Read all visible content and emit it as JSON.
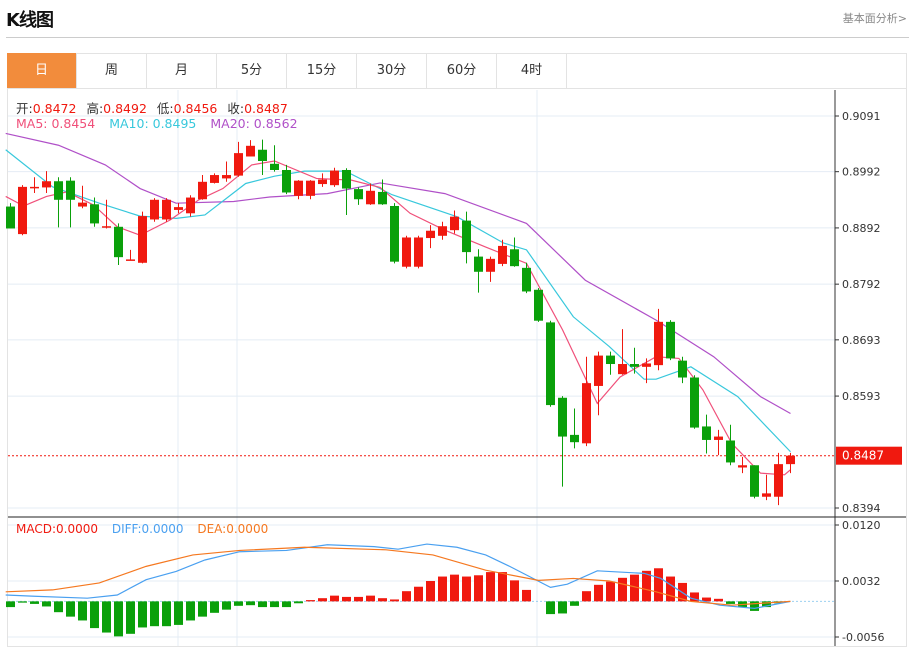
{
  "header": {
    "title": "K线图",
    "link": "基本面分析>"
  },
  "tabs": [
    {
      "label": "日",
      "active": true
    },
    {
      "label": "周"
    },
    {
      "label": "月"
    },
    {
      "label": "5分"
    },
    {
      "label": "15分"
    },
    {
      "label": "30分"
    },
    {
      "label": "60分"
    },
    {
      "label": "4时"
    }
  ],
  "ohlc_legend": {
    "open_label": "开:",
    "open": "0.8472",
    "high_label": "高:",
    "high": "0.8492",
    "low_label": "低:",
    "low": "0.8456",
    "close_label": "收:",
    "close": "0.8487"
  },
  "ma_legend": {
    "ma5": "MA5: 0.8454",
    "ma10": "MA10: 0.8495",
    "ma20": "MA20: 0.8562"
  },
  "macd_legend": {
    "macd": "MACD:0.0000",
    "diff": "DIFF:0.0000",
    "dea": "DEA:0.0000"
  },
  "colors": {
    "up": "#f0190f",
    "down": "#0aa00a",
    "ma5": "#f0507a",
    "ma10": "#38c8dc",
    "ma20": "#b050c8",
    "diff": "#4aa0f0",
    "dea": "#f57820",
    "accent": "#f28c3c"
  },
  "chart_data": {
    "type": "candlestick",
    "price_ticks": [
      "0.9091",
      "0.8992",
      "0.8892",
      "0.8792",
      "0.8693",
      "0.8593",
      "0.8394"
    ],
    "current_price": "0.8487",
    "macd_ticks": [
      "0.0120",
      "0.0032",
      "-0.0056"
    ],
    "candles": [
      [
        0.893,
        0.8936,
        0.8891,
        0.8891
      ],
      [
        0.8881,
        0.8968,
        0.8879,
        0.8965
      ],
      [
        0.8963,
        0.8982,
        0.8954,
        0.8965
      ],
      [
        0.8964,
        0.8993,
        0.8954,
        0.8975
      ],
      [
        0.8975,
        0.8982,
        0.8893,
        0.8942
      ],
      [
        0.8976,
        0.8982,
        0.8893,
        0.8942
      ],
      [
        0.893,
        0.8967,
        0.8927,
        0.8937
      ],
      [
        0.8934,
        0.8946,
        0.8894,
        0.89
      ],
      [
        0.8894,
        0.8942,
        0.8891,
        0.8895
      ],
      [
        0.8894,
        0.89,
        0.8826,
        0.884
      ],
      [
        0.8835,
        0.8853,
        0.8834,
        0.8836
      ],
      [
        0.883,
        0.8921,
        0.8829,
        0.8913
      ],
      [
        0.8907,
        0.8945,
        0.8903,
        0.8942
      ],
      [
        0.8907,
        0.8945,
        0.8903,
        0.8942
      ],
      [
        0.8924,
        0.8936,
        0.8918,
        0.8929
      ],
      [
        0.8918,
        0.895,
        0.8912,
        0.8946
      ],
      [
        0.8943,
        0.8986,
        0.8942,
        0.8974
      ],
      [
        0.8972,
        0.8989,
        0.8971,
        0.8986
      ],
      [
        0.898,
        0.901,
        0.8974,
        0.8986
      ],
      [
        0.8985,
        0.9045,
        0.8983,
        0.9025
      ],
      [
        0.9019,
        0.9048,
        0.9019,
        0.9038
      ],
      [
        0.9031,
        0.9049,
        0.8986,
        0.9011
      ],
      [
        0.9006,
        0.9039,
        0.8992,
        0.8995
      ],
      [
        0.8995,
        0.9004,
        0.8952,
        0.8955
      ],
      [
        0.8949,
        0.8977,
        0.8943,
        0.8976
      ],
      [
        0.8949,
        0.8977,
        0.8943,
        0.8976
      ],
      [
        0.897,
        0.8989,
        0.8965,
        0.8978
      ],
      [
        0.8968,
        0.8999,
        0.8965,
        0.8994
      ],
      [
        0.8995,
        0.8998,
        0.8915,
        0.8962
      ],
      [
        0.8961,
        0.8964,
        0.8933,
        0.8943
      ],
      [
        0.8934,
        0.8971,
        0.8933,
        0.8958
      ],
      [
        0.8956,
        0.8978,
        0.8933,
        0.8934
      ],
      [
        0.8931,
        0.8936,
        0.8829,
        0.8832
      ],
      [
        0.8823,
        0.8878,
        0.882,
        0.8875
      ],
      [
        0.8823,
        0.8878,
        0.882,
        0.8875
      ],
      [
        0.8874,
        0.8897,
        0.8856,
        0.8887
      ],
      [
        0.8878,
        0.8903,
        0.8871,
        0.8895
      ],
      [
        0.8888,
        0.8923,
        0.8882,
        0.8912
      ],
      [
        0.8905,
        0.8921,
        0.8829,
        0.8849
      ],
      [
        0.8841,
        0.8854,
        0.8777,
        0.8814
      ],
      [
        0.8814,
        0.8841,
        0.8796,
        0.8837
      ],
      [
        0.8828,
        0.8871,
        0.8824,
        0.886
      ],
      [
        0.8854,
        0.8875,
        0.8823,
        0.8824
      ],
      [
        0.8821,
        0.883,
        0.8776,
        0.8779
      ],
      [
        0.8782,
        0.8785,
        0.8725,
        0.8727
      ],
      [
        0.8724,
        0.8727,
        0.8574,
        0.8577
      ],
      [
        0.859,
        0.8593,
        0.8432,
        0.8521
      ],
      [
        0.8524,
        0.8571,
        0.85,
        0.8511
      ],
      [
        0.8509,
        0.8663,
        0.8504,
        0.8616
      ],
      [
        0.8611,
        0.8672,
        0.8559,
        0.8665
      ],
      [
        0.8665,
        0.8672,
        0.8631,
        0.865
      ],
      [
        0.8632,
        0.8712,
        0.8631,
        0.865
      ],
      [
        0.865,
        0.8679,
        0.8633,
        0.8645
      ],
      [
        0.8645,
        0.866,
        0.8616,
        0.8651
      ],
      [
        0.8648,
        0.8748,
        0.8639,
        0.8725
      ],
      [
        0.8725,
        0.8728,
        0.8657,
        0.866
      ],
      [
        0.8656,
        0.8663,
        0.8616,
        0.8626
      ],
      [
        0.8626,
        0.863,
        0.8535,
        0.8537
      ],
      [
        0.8539,
        0.856,
        0.8491,
        0.8515
      ],
      [
        0.8515,
        0.8533,
        0.8488,
        0.8521
      ],
      [
        0.8514,
        0.8542,
        0.847,
        0.8475
      ],
      [
        0.8466,
        0.8485,
        0.8456,
        0.847
      ],
      [
        0.847,
        0.847,
        0.8411,
        0.8414
      ],
      [
        0.8414,
        0.8453,
        0.8408,
        0.842
      ],
      [
        0.8414,
        0.8492,
        0.8399,
        0.8472
      ],
      [
        0.8472,
        0.8492,
        0.8456,
        0.8487
      ]
    ],
    "ma5": [
      [
        -0.4,
        0.8948
      ],
      [
        1.1,
        0.8931
      ],
      [
        3.0,
        0.8948
      ],
      [
        4.7,
        0.8956
      ],
      [
        6.9,
        0.8933
      ],
      [
        8.9,
        0.8894
      ],
      [
        10.8,
        0.8879
      ],
      [
        13.3,
        0.8906
      ],
      [
        15.7,
        0.8942
      ],
      [
        17.7,
        0.8962
      ],
      [
        20.1,
        0.9004
      ],
      [
        22.0,
        0.9011
      ],
      [
        25.5,
        0.898
      ],
      [
        28.4,
        0.8977
      ],
      [
        30.8,
        0.8964
      ],
      [
        33.3,
        0.8918
      ],
      [
        36.2,
        0.8888
      ],
      [
        39.6,
        0.8858
      ],
      [
        43.0,
        0.8829
      ],
      [
        46.0,
        0.8711
      ],
      [
        48.9,
        0.858
      ],
      [
        50.8,
        0.8627
      ],
      [
        53.8,
        0.8663
      ],
      [
        55.7,
        0.866
      ],
      [
        57.7,
        0.8604
      ],
      [
        60.1,
        0.8509
      ],
      [
        62.5,
        0.8456
      ],
      [
        64.5,
        0.8453
      ],
      [
        65.0,
        0.8462
      ]
    ],
    "ma10": [
      [
        -0.4,
        0.9031
      ],
      [
        3.5,
        0.8965
      ],
      [
        7.4,
        0.8936
      ],
      [
        10.8,
        0.8913
      ],
      [
        13.8,
        0.8909
      ],
      [
        16.2,
        0.8915
      ],
      [
        19.6,
        0.8971
      ],
      [
        22.0,
        0.8984
      ],
      [
        24.5,
        0.8993
      ],
      [
        27.9,
        0.8993
      ],
      [
        31.8,
        0.8951
      ],
      [
        37.2,
        0.8912
      ],
      [
        41.1,
        0.8865
      ],
      [
        43.0,
        0.8853
      ],
      [
        46.9,
        0.8734
      ],
      [
        49.9,
        0.8681
      ],
      [
        52.8,
        0.8623
      ],
      [
        53.8,
        0.8623
      ],
      [
        56.7,
        0.8645
      ],
      [
        60.6,
        0.8592
      ],
      [
        65.0,
        0.8494
      ]
    ],
    "ma20": [
      [
        -0.4,
        0.906
      ],
      [
        4.0,
        0.9039
      ],
      [
        7.9,
        0.9004
      ],
      [
        10.8,
        0.8962
      ],
      [
        13.8,
        0.8936
      ],
      [
        18.6,
        0.8939
      ],
      [
        21.6,
        0.8947
      ],
      [
        26.4,
        0.8953
      ],
      [
        30.8,
        0.8972
      ],
      [
        36.2,
        0.8953
      ],
      [
        43.0,
        0.89
      ],
      [
        47.9,
        0.8799
      ],
      [
        53.8,
        0.8728
      ],
      [
        58.6,
        0.8663
      ],
      [
        62.5,
        0.8592
      ],
      [
        65.0,
        0.8562
      ]
    ],
    "macd_hist": [
      -0.0009,
      -0.0002,
      -0.0004,
      -0.0008,
      -0.0017,
      -0.0024,
      -0.003,
      -0.0042,
      -0.0049,
      -0.0055,
      -0.0051,
      -0.0041,
      -0.0039,
      -0.0039,
      -0.0037,
      -0.003,
      -0.0024,
      -0.0018,
      -0.0013,
      -0.0007,
      -0.0006,
      -0.0009,
      -0.0009,
      -0.0009,
      -0.0003,
      0.0002,
      0.0005,
      0.0009,
      0.0007,
      0.0007,
      0.0009,
      0.0005,
      0.0003,
      0.0016,
      0.0023,
      0.0032,
      0.0039,
      0.0042,
      0.0039,
      0.0041,
      0.0046,
      0.0046,
      0.0033,
      0.0018,
      0.0,
      -0.002,
      -0.0019,
      -0.0007,
      0.0016,
      0.0026,
      0.0031,
      0.0037,
      0.0042,
      0.0048,
      0.0052,
      0.0039,
      0.0029,
      0.0014,
      0.0006,
      0.0004,
      -0.0004,
      -0.0009,
      -0.0015,
      -0.0009,
      -0.0003,
      0.0
    ],
    "diff": [
      [
        -0.4,
        0.001
      ],
      [
        2.0,
        0.0008
      ],
      [
        6.4,
        0.0005
      ],
      [
        8.9,
        0.001
      ],
      [
        11.3,
        0.0034
      ],
      [
        13.8,
        0.0047
      ],
      [
        16.2,
        0.0065
      ],
      [
        19.1,
        0.0078
      ],
      [
        23.0,
        0.008
      ],
      [
        26.4,
        0.0089
      ],
      [
        30.3,
        0.0086
      ],
      [
        32.3,
        0.0082
      ],
      [
        34.7,
        0.009
      ],
      [
        37.2,
        0.0085
      ],
      [
        39.6,
        0.0073
      ],
      [
        41.6,
        0.0055
      ],
      [
        45.0,
        0.0022
      ],
      [
        46.4,
        0.0027
      ],
      [
        48.9,
        0.0048
      ],
      [
        52.8,
        0.0044
      ],
      [
        54.2,
        0.0036
      ],
      [
        56.7,
        0.0005
      ],
      [
        59.1,
        -0.0006
      ],
      [
        62.0,
        -0.0011
      ],
      [
        65.0,
        0.0
      ]
    ],
    "dea": [
      [
        -0.4,
        0.0015
      ],
      [
        3.5,
        0.0018
      ],
      [
        7.4,
        0.0029
      ],
      [
        11.3,
        0.0055
      ],
      [
        15.2,
        0.0073
      ],
      [
        19.1,
        0.008
      ],
      [
        24.5,
        0.0085
      ],
      [
        31.3,
        0.0081
      ],
      [
        35.2,
        0.0073
      ],
      [
        39.6,
        0.0049
      ],
      [
        44.0,
        0.0033
      ],
      [
        46.9,
        0.0036
      ],
      [
        49.9,
        0.0032
      ],
      [
        53.8,
        0.0015
      ],
      [
        56.7,
        0.0
      ],
      [
        60.1,
        -0.0006
      ],
      [
        65.0,
        0.0
      ]
    ]
  }
}
